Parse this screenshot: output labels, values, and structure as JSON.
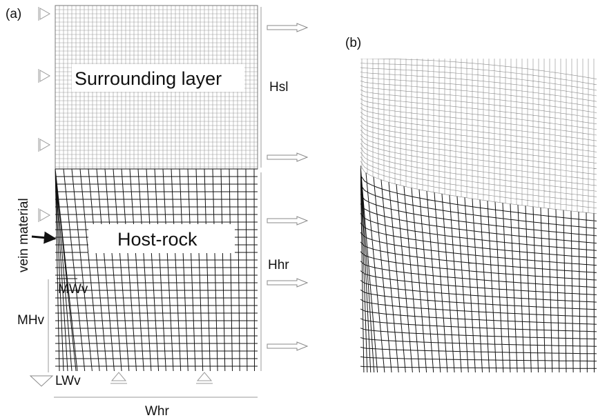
{
  "panels": {
    "a": {
      "label": "(a)",
      "surrounding": "Surrounding layer",
      "hsl": "Hsl",
      "host": "Host-rock",
      "hhr": "Hhr",
      "vein": "vein material",
      "mwv": "MWv",
      "mhv": "MHv",
      "lwv": "LWv",
      "whr": "Whr"
    },
    "b": {
      "label": "(b)"
    }
  }
}
